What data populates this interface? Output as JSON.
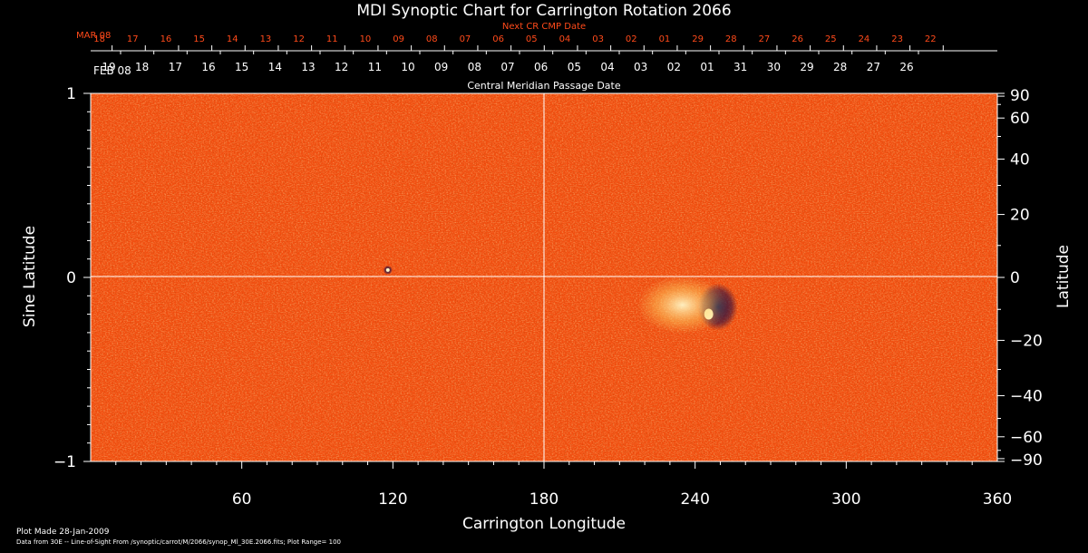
{
  "chart_data": {
    "type": "heatmap",
    "title": "MDI Synoptic Chart for Carrington Rotation 2066",
    "xlabel": "Carrington Longitude",
    "ylabel_left": "Sine Latitude",
    "ylabel_right": "Latitude",
    "xlim": [
      0,
      360
    ],
    "ylim_sine": [
      -1,
      1
    ],
    "x_ticks": [
      60,
      120,
      180,
      240,
      300,
      360
    ],
    "y_ticks_left": [
      {
        "value": 1,
        "label": "1"
      },
      {
        "value": 0,
        "label": "0"
      },
      {
        "value": -1,
        "label": "−1"
      }
    ],
    "y_ticks_right": [
      {
        "deg": 90,
        "label": "90"
      },
      {
        "deg": 60,
        "label": "60"
      },
      {
        "deg": 40,
        "label": "40"
      },
      {
        "deg": 20,
        "label": "20"
      },
      {
        "deg": 0,
        "label": "0"
      },
      {
        "deg": -20,
        "label": "−20"
      },
      {
        "deg": -40,
        "label": "−40"
      },
      {
        "deg": -60,
        "label": "−60"
      },
      {
        "deg": -90,
        "label": "−90"
      }
    ],
    "next_cr_axis": {
      "title": "Next CR CMP Date",
      "month_label": "MAR 08",
      "days": [
        "18",
        "17",
        "16",
        "15",
        "14",
        "13",
        "12",
        "11",
        "10",
        "09",
        "08",
        "07",
        "06",
        "05",
        "04",
        "03",
        "02",
        "01",
        "29",
        "28",
        "27",
        "26",
        "25",
        "24",
        "23",
        "22"
      ],
      "day_x": [
        8.5,
        21.7,
        34.9,
        48.1,
        61.3,
        74.5,
        87.7,
        100.9,
        114.1,
        127.3,
        140.5,
        153.7,
        166.9,
        180.1,
        193.3,
        206.5,
        219.7,
        232.9,
        246.1,
        259.3,
        272.5,
        285.7,
        298.9,
        312.1,
        325.3,
        338.5
      ]
    },
    "cmp_axis": {
      "title": "Central Meridian Passage Date",
      "month_label": "FEB 08",
      "days": [
        "19",
        "18",
        "17",
        "16",
        "15",
        "14",
        "13",
        "12",
        "11",
        "10",
        "09",
        "08",
        "07",
        "06",
        "05",
        "04",
        "03",
        "02",
        "01",
        "31",
        "30",
        "29",
        "28",
        "27",
        "26"
      ],
      "day_x": [
        7.2,
        20.4,
        33.6,
        46.8,
        60.0,
        73.2,
        86.4,
        99.6,
        112.8,
        126.0,
        139.2,
        152.4,
        165.6,
        178.8,
        192.0,
        205.2,
        218.4,
        231.6,
        244.8,
        258.0,
        271.2,
        284.4,
        297.6,
        310.8,
        324.0
      ]
    },
    "features": [
      {
        "name": "main active region",
        "lon": 249,
        "lat_sine": -0.16,
        "polarity": "bipolar"
      },
      {
        "name": "positive plage",
        "lon": 235,
        "lat_sine": -0.15,
        "polarity": "positive"
      },
      {
        "name": "small spot",
        "lon": 118,
        "lat_sine": 0.04,
        "polarity": "negative"
      }
    ],
    "colors": {
      "background_field": "#f24e10",
      "positive": "#fff6c8",
      "negative": "#10104a",
      "grid": "#ffffff",
      "accent": "#ff4a1a"
    }
  },
  "footer": {
    "plot_made": "Plot Made 28-Jan-2009",
    "data_source": "Data from 30E -- Line-of-Sight From /synoptic/carrot/M/2066/synop_Ml_30E.2066.fits; Plot Range=  100"
  }
}
